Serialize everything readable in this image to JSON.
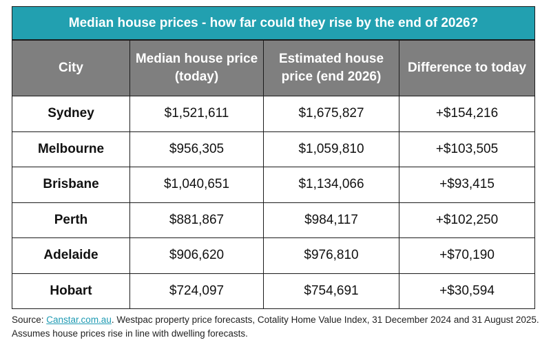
{
  "colors": {
    "title_bg": "#22a0b0",
    "header_bg": "#7f7f7f",
    "link": "#1e9ab3"
  },
  "chart_data": {
    "type": "table",
    "title": "Median house prices - how far could they rise by the end of 2026?",
    "columns": [
      "City",
      "Median house price (today)",
      "Estimated house price (end 2026)",
      "Difference to today"
    ],
    "rows": [
      [
        "Sydney",
        "$1,521,611",
        "$1,675,827",
        "+$154,216"
      ],
      [
        "Melbourne",
        "$956,305",
        "$1,059,810",
        "+$103,505"
      ],
      [
        "Brisbane",
        "$1,040,651",
        "$1,134,066",
        "+$93,415"
      ],
      [
        "Perth",
        "$881,867",
        "$984,117",
        "+$102,250"
      ],
      [
        "Adelaide",
        "$906,620",
        "$976,810",
        "+$70,190"
      ],
      [
        "Hobart",
        "$724,097",
        "$754,691",
        "+$30,594"
      ]
    ]
  },
  "source": {
    "prefix": "Source: ",
    "link_text": "Canstar.com.au",
    "text": ". Westpac property price forecasts, Cotality Home Value Index, 31 December 2024 and 31 August 2025. Assumes house prices rise in line with dwelling forecasts."
  }
}
